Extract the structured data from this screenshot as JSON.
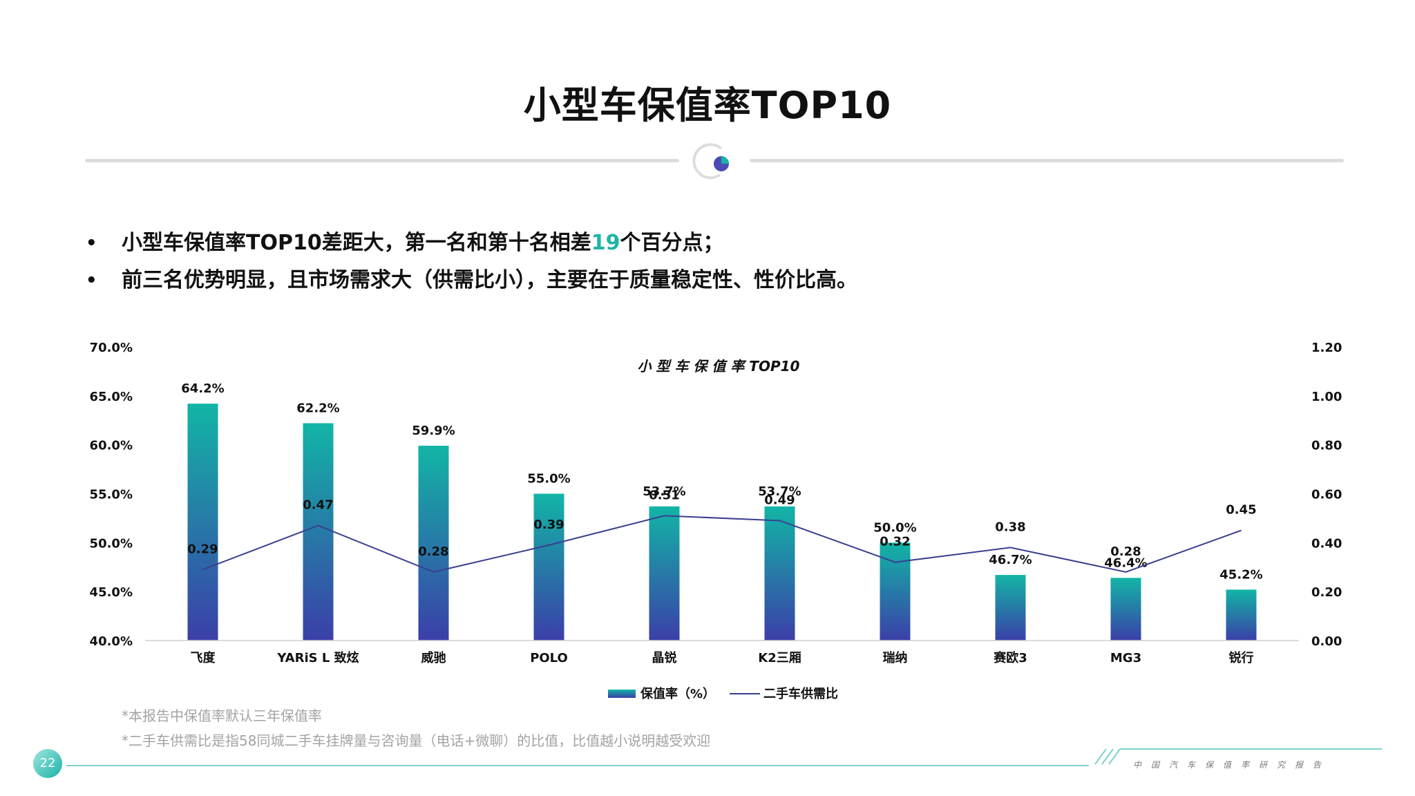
{
  "slide": {
    "title": "小型车保值率TOP10",
    "bullets": [
      {
        "pre": "小型车保值率TOP10差距大，第一名和第十名相差",
        "highlight": "19",
        "post": "个百分点；"
      },
      {
        "pre": "前三名优势明显，且市场需求大（供需比小），主要在于质量稳定性、性价比高。",
        "highlight": "",
        "post": ""
      }
    ],
    "notes": [
      "*本报告中保值率默认三年保值率",
      "*二手车供需比是指58同城二手车挂牌量与咨询量（电话+微聊）的比值，比值越小说明越受欢迎"
    ],
    "page_number": "22",
    "footer_text": "中国汽车保值率研究报告"
  },
  "colors": {
    "bar_top": "#12b5a6",
    "bar_bottom": "#3b3fa8",
    "line": "#3a3f8f",
    "accent": "#1fb4a6",
    "ornament_dot": "#4b4bb5",
    "ornament_ring": "#dddddd"
  },
  "chart_data": {
    "type": "bar",
    "title": "小 型 车 保 值 率 TOP10",
    "categories": [
      "飞度",
      "YARiS L 致炫",
      "威驰",
      "POLO",
      "晶锐",
      "K2三厢",
      "瑞纳",
      "赛欧3",
      "MG3",
      "锐行"
    ],
    "series": [
      {
        "name": "保值率（%）",
        "type": "bar",
        "axis": "left",
        "values": [
          64.2,
          62.2,
          59.9,
          55.0,
          53.7,
          53.7,
          50.0,
          46.7,
          46.4,
          45.2
        ],
        "labels": [
          "64.2%",
          "62.2%",
          "59.9%",
          "55.0%",
          "53.7%",
          "53.7%",
          "50.0%",
          "46.7%",
          "46.4%",
          "45.2%"
        ]
      },
      {
        "name": "二手车供需比",
        "type": "line",
        "axis": "right",
        "values": [
          0.29,
          0.47,
          0.28,
          0.39,
          0.51,
          0.49,
          0.32,
          0.38,
          0.28,
          0.45
        ],
        "labels": [
          "0.29",
          "0.47",
          "0.28",
          "0.39",
          "0.51",
          "0.49",
          "0.32",
          "0.38",
          "0.28",
          "0.45"
        ]
      }
    ],
    "y_left": {
      "min": 40,
      "max": 70,
      "ticks": [
        40,
        45,
        50,
        55,
        60,
        65,
        70
      ],
      "tick_labels": [
        "40.0%",
        "45.0%",
        "50.0%",
        "55.0%",
        "60.0%",
        "65.0%",
        "70.0%"
      ]
    },
    "y_right": {
      "min": 0,
      "max": 1.2,
      "ticks": [
        0,
        0.2,
        0.4,
        0.6,
        0.8,
        1.0,
        1.2
      ],
      "tick_labels": [
        "0.00",
        "0.20",
        "0.40",
        "0.60",
        "0.80",
        "1.00",
        "1.20"
      ]
    },
    "grid": false,
    "legend": "bottom-center"
  }
}
